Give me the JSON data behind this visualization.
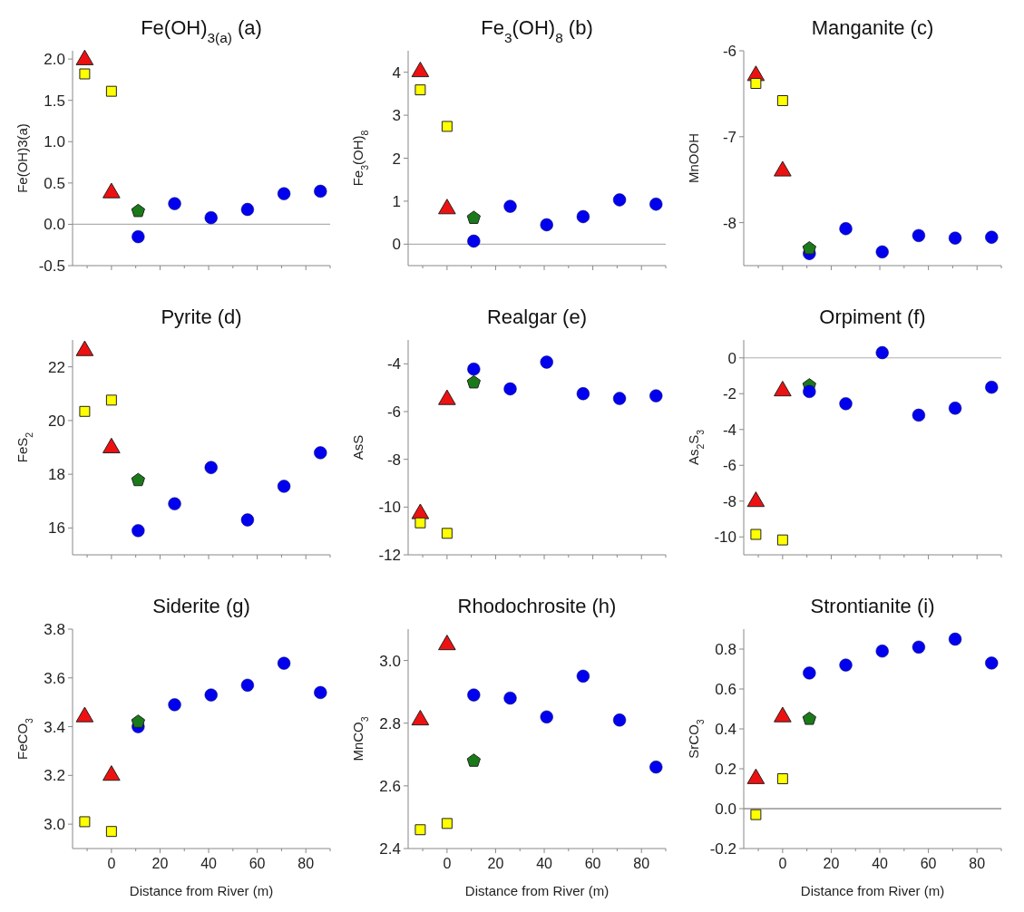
{
  "chart_data": [
    {
      "type": "scatter",
      "title": "Fe(OH)$_{3(a)}$ (a)",
      "ylabel": "Fe(OH)3(a)",
      "xlim": [
        -16,
        90
      ],
      "xticks": [
        {
          "value": -10,
          "label": null
        },
        0,
        {
          "value": 10,
          "label": null
        },
        20,
        {
          "value": 30,
          "label": null
        },
        40,
        {
          "value": 50,
          "label": null
        },
        60,
        {
          "value": 70,
          "label": null
        },
        80,
        {
          "value": 90,
          "label": null
        }
      ],
      "ylim": [
        -0.5,
        2.1
      ],
      "yticks": [
        -0.5,
        {
          "value": 0,
          "label": "0.0"
        },
        0.5,
        {
          "value": 1,
          "label": "1.0"
        },
        1.5,
        {
          "value": 2,
          "label": "2.0"
        }
      ],
      "tick_labels": "y",
      "ref_lines": [
        {
          "axis": "y",
          "value": 0,
          "color": "#b0b0b0"
        }
      ],
      "series": [
        {
          "color": "#ee1111",
          "marker": "triangle",
          "x": [
            -11,
            0
          ],
          "values": [
            1.99,
            0.38
          ]
        },
        {
          "color": "#ffff00",
          "marker": "square",
          "x": [
            -11,
            0
          ],
          "values": [
            1.82,
            1.61
          ]
        },
        {
          "color": "#1a7a1a",
          "x": [
            11
          ],
          "values": [
            0.16
          ]
        },
        {
          "color": "#0000ee",
          "marker": "circle",
          "x": [
            11,
            26,
            41,
            56,
            71,
            86
          ],
          "values": [
            -0.15,
            0.25,
            0.08,
            0.18,
            0.37,
            0.4
          ]
        }
      ]
    },
    {
      "type": "scatter",
      "title": "Fe$_{3}$(OH)$_{8}$ (b)",
      "ylabel": "Fe$_{3}$(OH)$_{8}$",
      "xlim": [
        -16,
        90
      ],
      "xticks": [
        {
          "value": -10,
          "label": null
        },
        0,
        {
          "value": 10,
          "label": null
        },
        20,
        {
          "value": 30,
          "label": null
        },
        40,
        {
          "value": 50,
          "label": null
        },
        60,
        {
          "value": 70,
          "label": null
        },
        80,
        {
          "value": 90,
          "label": null
        }
      ],
      "ylim": [
        -0.5,
        4.5
      ],
      "yticks": [
        0,
        1,
        2,
        3,
        4
      ],
      "tick_labels": "y",
      "ref_lines": [
        {
          "axis": "y",
          "value": 0,
          "color": "#b0b0b0"
        }
      ],
      "series": [
        {
          "color": "#ee1111",
          "marker": "triangle",
          "x": [
            -11,
            0
          ],
          "values": [
            4.01,
            0.82
          ]
        },
        {
          "color": "#ffff00",
          "marker": "square",
          "x": [
            -11,
            0
          ],
          "values": [
            3.59,
            2.74
          ]
        },
        {
          "color": "#1a7a1a",
          "x": [
            11
          ],
          "values": [
            0.61
          ]
        },
        {
          "color": "#0000ee",
          "marker": "circle",
          "x": [
            11,
            26,
            41,
            56,
            71,
            86
          ],
          "values": [
            0.07,
            0.88,
            0.45,
            0.64,
            1.03,
            0.93
          ]
        }
      ]
    },
    {
      "type": "scatter",
      "title": "Manganite (c)",
      "ylabel": "MnOOH",
      "xlim": [
        -16,
        90
      ],
      "xticks": [
        {
          "value": -10,
          "label": null
        },
        0,
        {
          "value": 10,
          "label": null
        },
        20,
        {
          "value": 30,
          "label": null
        },
        40,
        {
          "value": 50,
          "label": null
        },
        60,
        {
          "value": 70,
          "label": null
        },
        80,
        {
          "value": 90,
          "label": null
        }
      ],
      "ylim": [
        -8.5,
        -6
      ],
      "yticks": [
        -8,
        -7,
        -6
      ],
      "tick_labels": "y",
      "series": [
        {
          "color": "#ee1111",
          "marker": "triangle",
          "x": [
            -11,
            0
          ],
          "values": [
            -6.29,
            -7.4
          ]
        },
        {
          "color": "#ffff00",
          "marker": "square",
          "x": [
            -11,
            0
          ],
          "values": [
            -6.38,
            -6.58
          ]
        },
        {
          "color": "#0000ee",
          "marker": "circle",
          "x": [
            11,
            26,
            41,
            56,
            71,
            86
          ],
          "values": [
            -8.36,
            -8.07,
            -8.34,
            -8.15,
            -8.18,
            -8.17
          ]
        },
        {
          "color": "#1a7a1a",
          "x": [
            11
          ],
          "values": [
            -8.3
          ]
        }
      ]
    },
    {
      "type": "scatter",
      "title": "Pyrite (d)",
      "ylabel": "FeS$_{2}$",
      "xlim": [
        -16,
        90
      ],
      "xticks": [
        {
          "value": -10,
          "label": null
        },
        0,
        {
          "value": 10,
          "label": null
        },
        20,
        {
          "value": 30,
          "label": null
        },
        40,
        {
          "value": 50,
          "label": null
        },
        60,
        {
          "value": 70,
          "label": null
        },
        80,
        {
          "value": 90,
          "label": null
        }
      ],
      "ylim": [
        15,
        23
      ],
      "yticks": [
        16,
        18,
        20,
        22
      ],
      "tick_labels": "y",
      "series": [
        {
          "color": "#ee1111",
          "marker": "triangle",
          "x": [
            -11,
            0
          ],
          "values": [
            22.6,
            18.98
          ]
        },
        {
          "color": "#ffff00",
          "marker": "square",
          "x": [
            -11,
            0
          ],
          "values": [
            20.34,
            20.76
          ]
        },
        {
          "color": "#1a7a1a",
          "x": [
            11
          ],
          "values": [
            17.78
          ]
        },
        {
          "color": "#0000ee",
          "marker": "circle",
          "x": [
            11,
            26,
            41,
            56,
            71,
            86
          ],
          "values": [
            15.9,
            16.9,
            18.25,
            16.3,
            17.55,
            18.8
          ]
        }
      ]
    },
    {
      "type": "scatter",
      "title": "Realgar (e)",
      "ylabel": "AsS",
      "xlim": [
        -16,
        90
      ],
      "xticks": [
        {
          "value": -10,
          "label": null
        },
        0,
        {
          "value": 10,
          "label": null
        },
        20,
        {
          "value": 30,
          "label": null
        },
        40,
        {
          "value": 50,
          "label": null
        },
        60,
        {
          "value": 70,
          "label": null
        },
        80,
        {
          "value": 90,
          "label": null
        }
      ],
      "ylim": [
        -12,
        -3
      ],
      "yticks": [
        -12,
        -10,
        -8,
        -6,
        -4
      ],
      "tick_labels": "y",
      "series": [
        {
          "color": "#ee1111",
          "marker": "triangle",
          "x": [
            -11,
            0
          ],
          "values": [
            -10.28,
            -5.5
          ]
        },
        {
          "color": "#ffff00",
          "marker": "square",
          "x": [
            -11,
            0
          ],
          "values": [
            -10.66,
            -11.1
          ]
        },
        {
          "color": "#1a7a1a",
          "x": [
            11
          ],
          "values": [
            -4.78
          ]
        },
        {
          "color": "#0000ee",
          "marker": "circle",
          "x": [
            11,
            26,
            41,
            56,
            71,
            86
          ],
          "values": [
            -4.22,
            -5.05,
            -3.93,
            -5.25,
            -5.45,
            -5.34
          ]
        }
      ]
    },
    {
      "type": "scatter",
      "title": "Orpiment (f)",
      "ylabel": "As$_{2}$S$_{3}$",
      "xlim": [
        -16,
        90
      ],
      "xticks": [
        {
          "value": -10,
          "label": null
        },
        0,
        {
          "value": 10,
          "label": null
        },
        20,
        {
          "value": 30,
          "label": null
        },
        40,
        {
          "value": 50,
          "label": null
        },
        60,
        {
          "value": 70,
          "label": null
        },
        80,
        {
          "value": 90,
          "label": null
        }
      ],
      "ylim": [
        -11,
        1
      ],
      "yticks": [
        -10,
        -8,
        -6,
        -4,
        -2,
        0
      ],
      "tick_labels": "y",
      "ref_lines": [
        {
          "axis": "y",
          "value": 0,
          "color": "#b0b0b0"
        }
      ],
      "series": [
        {
          "color": "#ee1111",
          "marker": "triangle",
          "x": [
            -11,
            0
          ],
          "values": [
            -8.03,
            -1.85
          ]
        },
        {
          "color": "#ffff00",
          "marker": "square",
          "x": [
            -11,
            0
          ],
          "values": [
            -9.86,
            -10.17
          ]
        },
        {
          "color": "#1a7a1a",
          "x": [
            11
          ],
          "values": [
            -1.54
          ]
        },
        {
          "color": "#0000ee",
          "marker": "circle",
          "x": [
            11,
            26,
            41,
            56,
            71,
            86
          ],
          "values": [
            -1.88,
            -2.56,
            0.29,
            -3.2,
            -2.81,
            -1.64
          ]
        }
      ]
    },
    {
      "type": "scatter",
      "title": "Siderite (g)",
      "xlabel": "Distance from River (m)",
      "ylabel": "FeCO$_{3}$",
      "xlim": [
        -16,
        90
      ],
      "xticks": [
        {
          "value": -10,
          "label": null
        },
        0,
        {
          "value": 10,
          "label": null
        },
        20,
        {
          "value": 30,
          "label": null
        },
        40,
        {
          "value": 50,
          "label": null
        },
        60,
        {
          "value": 70,
          "label": null
        },
        80,
        {
          "value": 90,
          "label": null
        }
      ],
      "ylim": [
        2.9,
        3.8
      ],
      "yticks": [
        {
          "value": 3,
          "label": "3.0"
        },
        3.2,
        3.4,
        3.6,
        3.8
      ],
      "series": [
        {
          "color": "#ee1111",
          "marker": "triangle",
          "x": [
            -11,
            0
          ],
          "values": [
            3.44,
            3.2
          ]
        },
        {
          "color": "#ffff00",
          "marker": "square",
          "x": [
            -11,
            0
          ],
          "values": [
            3.01,
            2.97
          ]
        },
        {
          "color": "#0000ee",
          "marker": "circle",
          "x": [
            11,
            26,
            41,
            56,
            71,
            86
          ],
          "values": [
            3.4,
            3.49,
            3.53,
            3.57,
            3.66,
            3.54
          ]
        },
        {
          "color": "#1a7a1a",
          "x": [
            11
          ],
          "values": [
            3.42
          ]
        }
      ]
    },
    {
      "type": "scatter",
      "title": "Rhodochrosite (h)",
      "xlabel": "Distance from River (m)",
      "ylabel": "MnCO$_{3}$",
      "xlim": [
        -16,
        90
      ],
      "xticks": [
        {
          "value": -10,
          "label": null
        },
        0,
        {
          "value": 10,
          "label": null
        },
        20,
        {
          "value": 30,
          "label": null
        },
        40,
        {
          "value": 50,
          "label": null
        },
        60,
        {
          "value": 70,
          "label": null
        },
        80,
        {
          "value": 90,
          "label": null
        }
      ],
      "ylim": [
        2.4,
        3.1
      ],
      "yticks": [
        2.4,
        2.6,
        2.8,
        {
          "value": 3,
          "label": "3.0"
        }
      ],
      "series": [
        {
          "color": "#ee1111",
          "marker": "triangle",
          "x": [
            -11,
            0
          ],
          "values": [
            2.81,
            3.05
          ]
        },
        {
          "color": "#ffff00",
          "marker": "square",
          "x": [
            -11,
            0
          ],
          "values": [
            2.46,
            2.48
          ]
        },
        {
          "color": "#1a7a1a",
          "x": [
            11
          ],
          "values": [
            2.68
          ]
        },
        {
          "color": "#0000ee",
          "marker": "circle",
          "x": [
            11,
            26,
            41,
            56,
            71,
            86
          ],
          "values": [
            2.89,
            2.88,
            2.82,
            2.95,
            2.81,
            2.66
          ]
        }
      ]
    },
    {
      "type": "scatter",
      "title": "Strontianite (i)",
      "xlabel": "Distance from River (m)",
      "ylabel": "SrCO$_{3}$",
      "xlim": [
        -16,
        90
      ],
      "xticks": [
        {
          "value": -10,
          "label": null
        },
        0,
        {
          "value": 10,
          "label": null
        },
        20,
        {
          "value": 30,
          "label": null
        },
        40,
        {
          "value": 50,
          "label": null
        },
        60,
        {
          "value": 70,
          "label": null
        },
        80,
        {
          "value": 90,
          "label": null
        }
      ],
      "ylim": [
        -0.2,
        0.9
      ],
      "yticks": [
        -0.2,
        {
          "value": 0,
          "label": "0.0"
        },
        0.2,
        0.4,
        0.6,
        0.8
      ],
      "ref_lines": [
        {
          "axis": "y",
          "value": 0,
          "color": "#606060"
        }
      ],
      "series": [
        {
          "color": "#ee1111",
          "marker": "triangle",
          "x": [
            -11,
            0
          ],
          "values": [
            0.15,
            0.46
          ]
        },
        {
          "color": "#ffff00",
          "marker": "square",
          "x": [
            -11,
            0
          ],
          "values": [
            -0.03,
            0.15
          ]
        },
        {
          "color": "#1a7a1a",
          "x": [
            11
          ],
          "values": [
            0.45
          ]
        },
        {
          "color": "#0000ee",
          "marker": "circle",
          "x": [
            11,
            26,
            41,
            56,
            71,
            86
          ],
          "values": [
            0.68,
            0.72,
            0.79,
            0.81,
            0.85,
            0.73
          ]
        }
      ]
    }
  ]
}
